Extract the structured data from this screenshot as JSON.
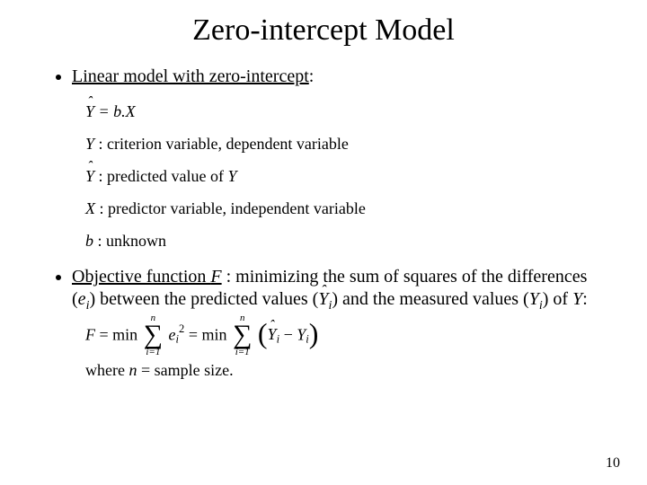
{
  "title": "Zero-intercept Model",
  "bullet1": {
    "prefix": "Linear model with zero-intercept",
    "suffix": ":"
  },
  "equations": {
    "eq1_lhs": "Y",
    "eq1_eq": " = ",
    "eq1_rhs": "b.X",
    "def_Y_sym": "Y",
    "def_Y_sep": " : ",
    "def_Y_text": "criterion variable, dependent variable",
    "def_Yhat_sym": "Y",
    "def_Yhat_sep": " : ",
    "def_Yhat_text": "predicted value of ",
    "def_Yhat_tail": "Y",
    "def_X_sym": "X",
    "def_X_sep": " : ",
    "def_X_text": "predictor variable, independent variable",
    "def_b_sym": "b",
    "def_b_sep": " : ",
    "def_b_text": "unknown"
  },
  "bullet2": {
    "t1": "Objective function ",
    "Fsym": "F",
    "t2": " : minimizing the sum of squares of the differences (",
    "e": "e",
    "sub_i1": "i",
    "t3": ") between the predicted values (",
    "yhat": "Y",
    "sub_i2": "i",
    "t4": ") and the measured values (",
    "Y": "Y",
    "sub_i3": "i",
    "t5": ") of ",
    "Yplain": "Y",
    "t6": ":"
  },
  "formula": {
    "F": "F",
    "eq": " = min",
    "sum_top": "n",
    "sum_bot": "i=1",
    "e": "e",
    "sub_i": "i",
    "sq": "2",
    "eq2": " = min",
    "yhat": "Y",
    "minus": " − ",
    "Y": "Y"
  },
  "where": {
    "t1": "where ",
    "n": "n",
    "t2": " = sample size."
  },
  "page": "10"
}
